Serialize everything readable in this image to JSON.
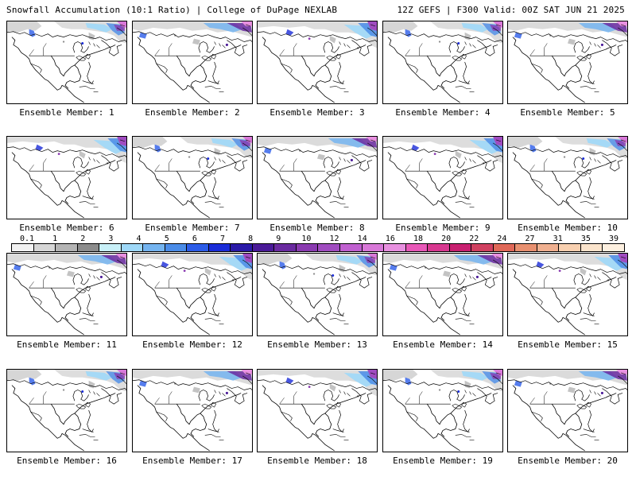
{
  "header": {
    "left": "Snowfall Accumulation (10:1 Ratio) | College of DuPage NEXLAB",
    "right": "12Z GEFS | F300 Valid: 00Z SAT JUN 21 2025"
  },
  "color_scale": {
    "tick_labels": [
      "0.1",
      "1",
      "2",
      "3",
      "4",
      "5",
      "6",
      "7",
      "8",
      "9",
      "10",
      "12",
      "14",
      "16",
      "18",
      "20",
      "22",
      "24",
      "27",
      "31",
      "35",
      "39"
    ],
    "colors": [
      "#f2f2f2",
      "#d6d6d6",
      "#b4b4b4",
      "#8c8c8c",
      "#c8f0f8",
      "#9ed8f8",
      "#74b4f0",
      "#4a8ce8",
      "#2c5ce8",
      "#1a2cd8",
      "#2a1aa8",
      "#4a1a98",
      "#6a2aa0",
      "#8a3ab0",
      "#a04cc0",
      "#c060d0",
      "#d878d8",
      "#e890e0",
      "#e858b8",
      "#d83890",
      "#c82070",
      "#d04060",
      "#e06858",
      "#e89070",
      "#f0b090",
      "#f8d0b0",
      "#fbe4cc",
      "#fdf0e0"
    ]
  },
  "panels": [
    {
      "label": "Ensemble Member: 1"
    },
    {
      "label": "Ensemble Member: 2"
    },
    {
      "label": "Ensemble Member: 3"
    },
    {
      "label": "Ensemble Member: 4"
    },
    {
      "label": "Ensemble Member: 5"
    },
    {
      "label": "Ensemble Member: 6"
    },
    {
      "label": "Ensemble Member: 7"
    },
    {
      "label": "Ensemble Member: 8"
    },
    {
      "label": "Ensemble Member: 9"
    },
    {
      "label": "Ensemble Member: 10"
    },
    {
      "label": "Ensemble Member: 11"
    },
    {
      "label": "Ensemble Member: 12"
    },
    {
      "label": "Ensemble Member: 13"
    },
    {
      "label": "Ensemble Member: 14"
    },
    {
      "label": "Ensemble Member: 15"
    },
    {
      "label": "Ensemble Member: 16"
    },
    {
      "label": "Ensemble Member: 17"
    },
    {
      "label": "Ensemble Member: 18"
    },
    {
      "label": "Ensemble Member: 19"
    },
    {
      "label": "Ensemble Member: 20"
    }
  ]
}
